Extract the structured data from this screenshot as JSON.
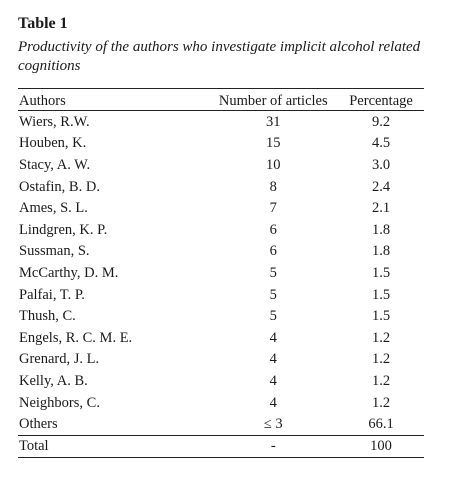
{
  "table": {
    "label": "Table 1",
    "caption": "Productivity of the authors who investigate implicit alcohol related cognitions",
    "headers": {
      "authors": "Authors",
      "articles": "Number of articles",
      "percentage": "Percentage"
    },
    "rows": [
      {
        "author": "Wiers, R.W.",
        "articles": "31",
        "percentage": "9.2"
      },
      {
        "author": "Houben, K.",
        "articles": "15",
        "percentage": "4.5"
      },
      {
        "author": "Stacy, A. W.",
        "articles": "10",
        "percentage": "3.0"
      },
      {
        "author": "Ostafin, B. D.",
        "articles": "8",
        "percentage": "2.4"
      },
      {
        "author": "Ames, S. L.",
        "articles": "7",
        "percentage": "2.1"
      },
      {
        "author": "Lindgren, K. P.",
        "articles": "6",
        "percentage": "1.8"
      },
      {
        "author": "Sussman, S.",
        "articles": "6",
        "percentage": "1.8"
      },
      {
        "author": "McCarthy, D. M.",
        "articles": "5",
        "percentage": "1.5"
      },
      {
        "author": "Palfai, T. P.",
        "articles": "5",
        "percentage": "1.5"
      },
      {
        "author": "Thush, C.",
        "articles": "5",
        "percentage": "1.5"
      },
      {
        "author": "Engels, R. C. M. E.",
        "articles": "4",
        "percentage": "1.2"
      },
      {
        "author": "Grenard, J. L.",
        "articles": "4",
        "percentage": "1.2"
      },
      {
        "author": "Kelly, A. B.",
        "articles": "4",
        "percentage": "1.2"
      },
      {
        "author": "Neighbors, C.",
        "articles": "4",
        "percentage": "1.2"
      },
      {
        "author": "Others",
        "articles": "≤ 3",
        "percentage": "66.1"
      },
      {
        "author": "Total",
        "articles": "-",
        "percentage": "100"
      }
    ]
  }
}
